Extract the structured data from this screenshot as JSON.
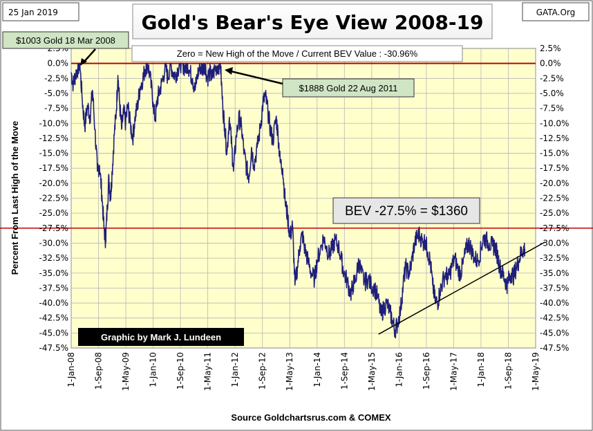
{
  "chart_data": {
    "type": "line",
    "title": "Gold's Bear's Eye View 2008-19",
    "date_label": "25 Jan 2019",
    "brand_label": "GATA.Org",
    "subtitle": "Zero = New High of the Move / Current  BEV Value : -30.96%",
    "ylabel": "Percent  From Last High of the Move",
    "xlabel": "Source Goldchartsrus.com & COMEX",
    "credit": "Graphic by Mark J. Lundeen",
    "ylim": [
      -47.5,
      2.5
    ],
    "y_ticks": [
      2.5,
      0,
      -2.5,
      -5,
      -7.5,
      -10,
      -12.5,
      -15,
      -17.5,
      -20,
      -22.5,
      -25,
      -27.5,
      -30,
      -32.5,
      -35,
      -37.5,
      -40,
      -42.5,
      -45,
      -47.5
    ],
    "y_tick_labels": [
      "2.5%",
      "0.0%",
      "-2.5%",
      "-5.0%",
      "-7.5%",
      "-10.0%",
      "-12.5%",
      "-15.0%",
      "-17.5%",
      "-20.0%",
      "-22.5%",
      "-25.0%",
      "-27.5%",
      "-30.0%",
      "-32.5%",
      "-35.0%",
      "-37.5%",
      "-40.0%",
      "-42.5%",
      "-45.0%",
      "-47.5%"
    ],
    "x_tick_labels": [
      "1-Jan-08",
      "1-Sep-08",
      "1-May-09",
      "1-Jan-10",
      "1-Sep-10",
      "1-May-11",
      "1-Jan-12",
      "1-Sep-12",
      "1-May-13",
      "1-Jan-14",
      "1-Sep-14",
      "1-May-15",
      "1-Jan-16",
      "1-Sep-16",
      "1-May-17",
      "1-Jan-18",
      "1-Sep-18",
      "1-May-19"
    ],
    "x_range_years": [
      2008.0,
      2019.333
    ],
    "reference_lines": [
      {
        "name": "zero-line",
        "y": 0,
        "color": "#c00000"
      },
      {
        "name": "bev-line",
        "y": -27.5,
        "color": "#c00000"
      }
    ],
    "trendline": {
      "from": [
        2015.5,
        -45.2
      ],
      "to": [
        2019.33,
        -30.5
      ],
      "color": "#000000"
    },
    "annotations": [
      {
        "name": "annotation-2008-high",
        "text": "$1003  Gold 18 Mar 2008",
        "x": 2008.21,
        "y": 0
      },
      {
        "name": "annotation-2011-high",
        "text": "$1888  Gold 22 Aug 2011",
        "x": 2011.64,
        "y": 0
      },
      {
        "name": "annotation-bev",
        "text": "BEV -27.5% = $1360"
      }
    ],
    "series": [
      {
        "name": "Gold BEV",
        "color": "#1f1f7a",
        "points": [
          [
            2008.0,
            -1.5
          ],
          [
            2008.05,
            -3.5
          ],
          [
            2008.1,
            -2.0
          ],
          [
            2008.15,
            -1.0
          ],
          [
            2008.21,
            0.0
          ],
          [
            2008.27,
            -6.0
          ],
          [
            2008.33,
            -10.5
          ],
          [
            2008.4,
            -7.0
          ],
          [
            2008.46,
            -9.0
          ],
          [
            2008.52,
            -4.5
          ],
          [
            2008.58,
            -11.0
          ],
          [
            2008.64,
            -18.0
          ],
          [
            2008.69,
            -17.0
          ],
          [
            2008.75,
            -22.0
          ],
          [
            2008.8,
            -27.5
          ],
          [
            2008.84,
            -29.5
          ],
          [
            2008.88,
            -24.0
          ],
          [
            2008.92,
            -19.0
          ],
          [
            2008.96,
            -22.5
          ],
          [
            2009.0,
            -18.0
          ],
          [
            2009.05,
            -12.0
          ],
          [
            2009.1,
            -8.0
          ],
          [
            2009.14,
            -2.0
          ],
          [
            2009.18,
            -6.5
          ],
          [
            2009.23,
            -11.0
          ],
          [
            2009.28,
            -8.0
          ],
          [
            2009.33,
            -10.0
          ],
          [
            2009.38,
            -7.0
          ],
          [
            2009.44,
            -10.0
          ],
          [
            2009.5,
            -12.5
          ],
          [
            2009.56,
            -9.0
          ],
          [
            2009.62,
            -7.0
          ],
          [
            2009.68,
            -4.0
          ],
          [
            2009.75,
            -2.5
          ],
          [
            2009.8,
            -1.0
          ],
          [
            2009.86,
            0.0
          ],
          [
            2009.92,
            -2.0
          ],
          [
            2010.0,
            -6.5
          ],
          [
            2010.05,
            -9.5
          ],
          [
            2010.1,
            -6.0
          ],
          [
            2010.16,
            -4.5
          ],
          [
            2010.22,
            -3.0
          ],
          [
            2010.3,
            -0.5
          ],
          [
            2010.36,
            -2.5
          ],
          [
            2010.42,
            0.0
          ],
          [
            2010.48,
            -1.5
          ],
          [
            2010.54,
            -2.0
          ],
          [
            2010.6,
            -1.0
          ],
          [
            2010.66,
            0.0
          ],
          [
            2010.72,
            0.0
          ],
          [
            2010.78,
            -1.0
          ],
          [
            2010.84,
            0.0
          ],
          [
            2010.9,
            -1.5
          ],
          [
            2010.96,
            -2.5
          ],
          [
            2011.02,
            -4.5
          ],
          [
            2011.08,
            -2.0
          ],
          [
            2011.14,
            -0.5
          ],
          [
            2011.2,
            -1.0
          ],
          [
            2011.26,
            0.0
          ],
          [
            2011.32,
            -2.5
          ],
          [
            2011.38,
            -1.5
          ],
          [
            2011.44,
            -2.5
          ],
          [
            2011.5,
            -1.0
          ],
          [
            2011.56,
            -0.5
          ],
          [
            2011.64,
            0.0
          ],
          [
            2011.7,
            -7.5
          ],
          [
            2011.74,
            -10.0
          ],
          [
            2011.8,
            -15.0
          ],
          [
            2011.86,
            -9.0
          ],
          [
            2011.92,
            -14.0
          ],
          [
            2011.96,
            -18.0
          ],
          [
            2012.03,
            -12.0
          ],
          [
            2012.1,
            -9.0
          ],
          [
            2012.16,
            -11.0
          ],
          [
            2012.22,
            -15.0
          ],
          [
            2012.28,
            -17.5
          ],
          [
            2012.34,
            -19.0
          ],
          [
            2012.4,
            -14.0
          ],
          [
            2012.46,
            -17.0
          ],
          [
            2012.54,
            -14.0
          ],
          [
            2012.62,
            -10.5
          ],
          [
            2012.68,
            -6.5
          ],
          [
            2012.74,
            -5.5
          ],
          [
            2012.8,
            -8.0
          ],
          [
            2012.86,
            -11.0
          ],
          [
            2012.92,
            -13.0
          ],
          [
            2013.0,
            -9.0
          ],
          [
            2013.05,
            -12.0
          ],
          [
            2013.1,
            -16.5
          ],
          [
            2013.16,
            -17.5
          ],
          [
            2013.22,
            -23.0
          ],
          [
            2013.28,
            -25.5
          ],
          [
            2013.34,
            -29.0
          ],
          [
            2013.4,
            -27.0
          ],
          [
            2013.46,
            -37.0
          ],
          [
            2013.52,
            -34.0
          ],
          [
            2013.58,
            -30.5
          ],
          [
            2013.64,
            -28.5
          ],
          [
            2013.7,
            -31.0
          ],
          [
            2013.78,
            -33.0
          ],
          [
            2013.86,
            -35.0
          ],
          [
            2013.94,
            -36.0
          ],
          [
            2014.0,
            -33.0
          ],
          [
            2014.08,
            -31.0
          ],
          [
            2014.16,
            -29.0
          ],
          [
            2014.22,
            -30.5
          ],
          [
            2014.3,
            -32.0
          ],
          [
            2014.36,
            -31.0
          ],
          [
            2014.44,
            -29.5
          ],
          [
            2014.52,
            -30.5
          ],
          [
            2014.6,
            -33.0
          ],
          [
            2014.66,
            -35.0
          ],
          [
            2014.74,
            -36.5
          ],
          [
            2014.82,
            -38.5
          ],
          [
            2014.88,
            -37.0
          ],
          [
            2014.94,
            -36.0
          ],
          [
            2015.02,
            -33.0
          ],
          [
            2015.08,
            -35.0
          ],
          [
            2015.16,
            -36.5
          ],
          [
            2015.24,
            -36.0
          ],
          [
            2015.32,
            -37.0
          ],
          [
            2015.4,
            -37.5
          ],
          [
            2015.48,
            -39.0
          ],
          [
            2015.56,
            -42.0
          ],
          [
            2015.62,
            -41.0
          ],
          [
            2015.7,
            -40.0
          ],
          [
            2015.78,
            -41.5
          ],
          [
            2015.84,
            -43.0
          ],
          [
            2015.9,
            -44.5
          ],
          [
            2015.96,
            -43.5
          ],
          [
            2016.04,
            -41.0
          ],
          [
            2016.1,
            -37.0
          ],
          [
            2016.16,
            -34.0
          ],
          [
            2016.24,
            -35.0
          ],
          [
            2016.3,
            -33.5
          ],
          [
            2016.38,
            -30.0
          ],
          [
            2016.44,
            -29.0
          ],
          [
            2016.5,
            -28.5
          ],
          [
            2016.58,
            -30.0
          ],
          [
            2016.64,
            -29.5
          ],
          [
            2016.7,
            -31.5
          ],
          [
            2016.76,
            -33.0
          ],
          [
            2016.82,
            -37.0
          ],
          [
            2016.88,
            -39.5
          ],
          [
            2016.94,
            -40.0
          ],
          [
            2017.0,
            -38.0
          ],
          [
            2017.06,
            -36.5
          ],
          [
            2017.14,
            -35.0
          ],
          [
            2017.2,
            -36.0
          ],
          [
            2017.28,
            -34.0
          ],
          [
            2017.36,
            -32.5
          ],
          [
            2017.44,
            -34.5
          ],
          [
            2017.5,
            -35.0
          ],
          [
            2017.56,
            -33.5
          ],
          [
            2017.64,
            -31.0
          ],
          [
            2017.7,
            -30.0
          ],
          [
            2017.76,
            -31.0
          ],
          [
            2017.84,
            -32.5
          ],
          [
            2017.92,
            -33.0
          ],
          [
            2018.0,
            -31.0
          ],
          [
            2018.06,
            -29.0
          ],
          [
            2018.12,
            -29.5
          ],
          [
            2018.2,
            -30.0
          ],
          [
            2018.28,
            -30.5
          ],
          [
            2018.34,
            -30.5
          ],
          [
            2018.4,
            -32.0
          ],
          [
            2018.46,
            -34.0
          ],
          [
            2018.52,
            -35.0
          ],
          [
            2018.58,
            -36.0
          ],
          [
            2018.63,
            -37.0
          ],
          [
            2018.68,
            -36.0
          ],
          [
            2018.74,
            -35.0
          ],
          [
            2018.8,
            -35.5
          ],
          [
            2018.86,
            -34.0
          ],
          [
            2018.92,
            -33.0
          ],
          [
            2018.98,
            -31.5
          ],
          [
            2019.04,
            -31.0
          ],
          [
            2019.07,
            -30.96
          ]
        ]
      }
    ]
  }
}
